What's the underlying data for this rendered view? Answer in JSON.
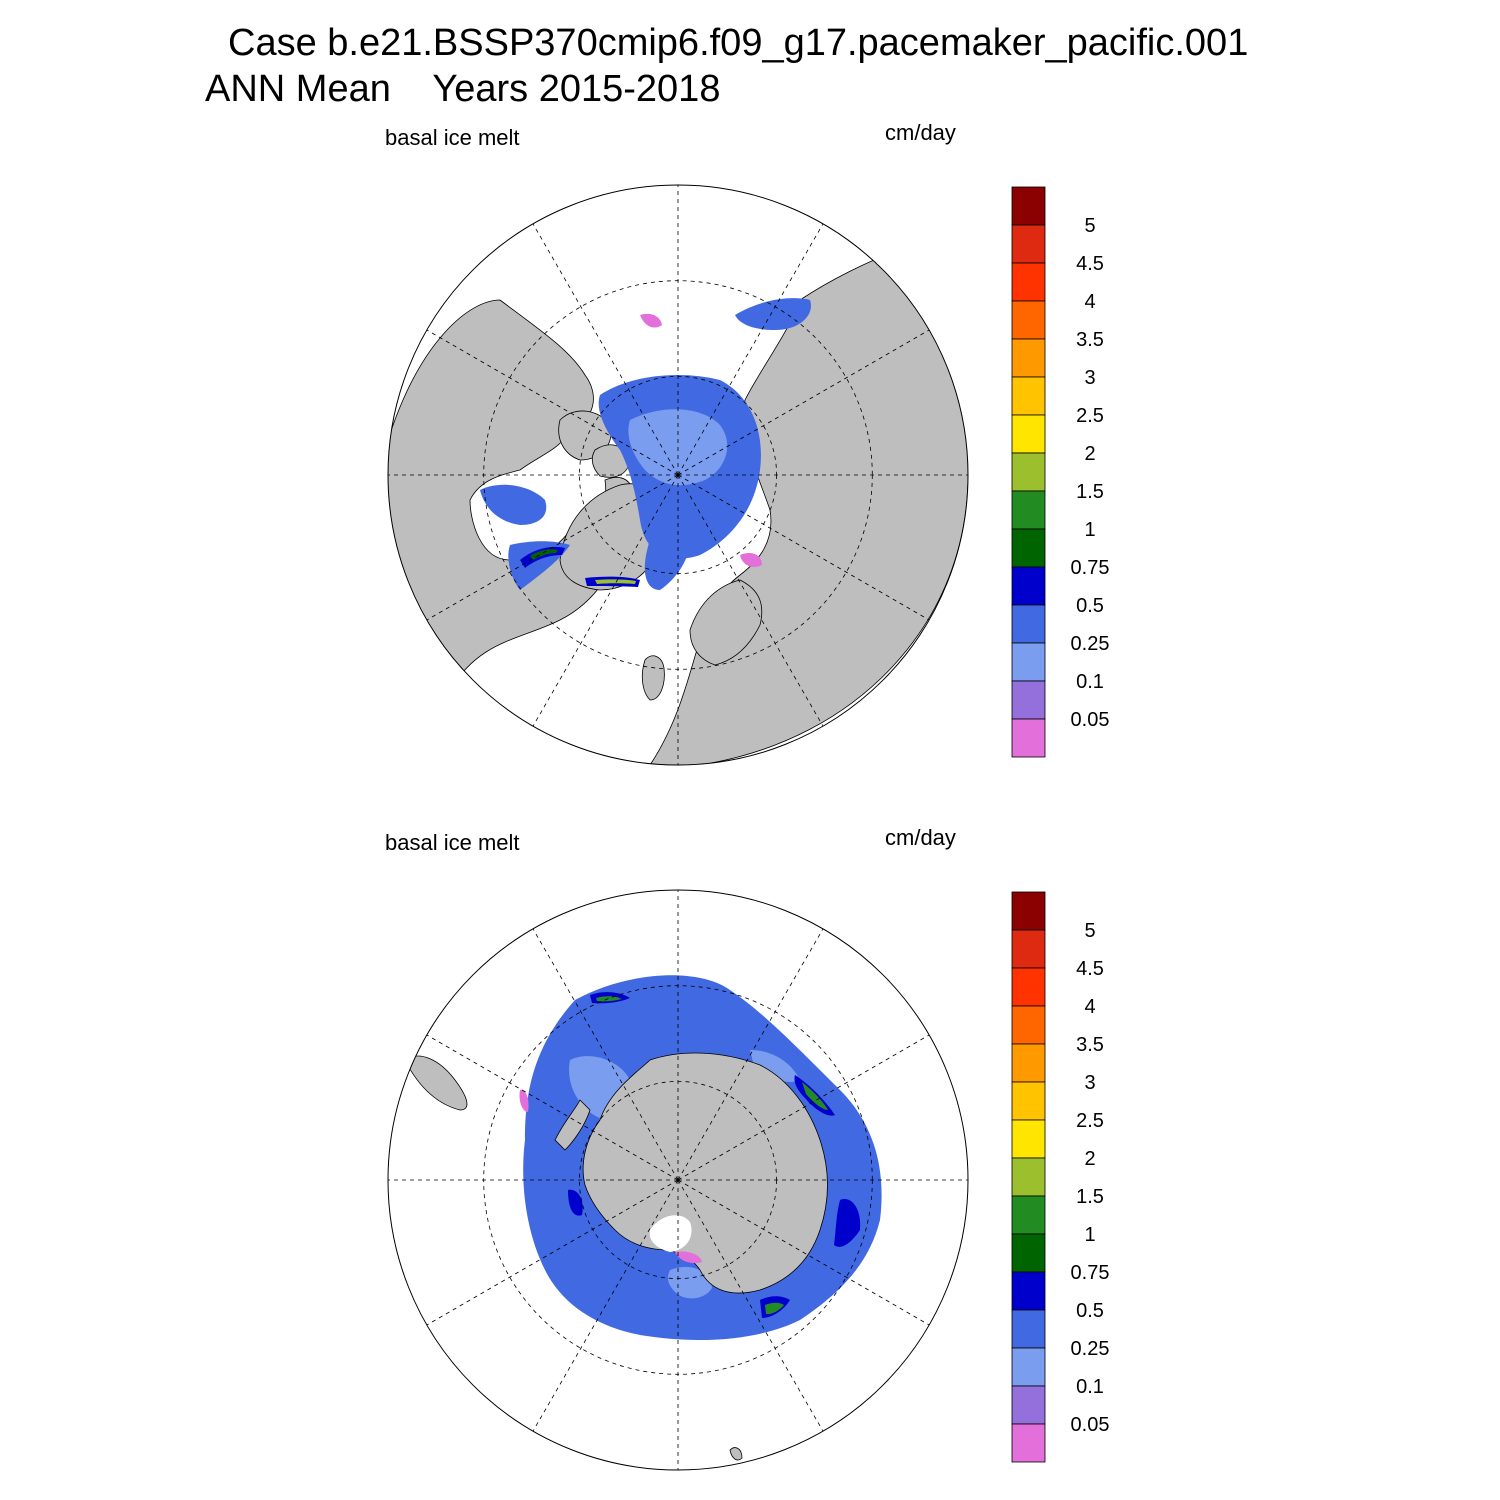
{
  "figure": {
    "title_line1": "Case b.e21.BSSP370cmip6.f09_g17.pacemaker_pacific.001",
    "title_line2": "ANN Mean    Years 2015-2018"
  },
  "panels": [
    {
      "id": "north",
      "hemisphere": "Northern",
      "left_label": "basal ice melt",
      "right_label": "cm/day"
    },
    {
      "id": "south",
      "hemisphere": "Southern",
      "left_label": "basal ice melt",
      "right_label": "cm/day"
    }
  ],
  "colorbar": {
    "labels": [
      "5",
      "4.5",
      "4",
      "3.5",
      "3",
      "2.5",
      "2",
      "1.5",
      "1",
      "0.75",
      "0.5",
      "0.25",
      "0.1",
      "0.05"
    ],
    "colors": [
      "#8b0000",
      "#dd2a11",
      "#ff3300",
      "#ff6600",
      "#ff9900",
      "#ffc300",
      "#ffe500",
      "#9cbf2e",
      "#228b22",
      "#006400",
      "#0000cd",
      "#4169e1",
      "#7b9df0",
      "#9370db",
      "#e36fdb"
    ]
  },
  "map_colors": {
    "land": "#bebebe",
    "ocean": "#ffffff",
    "grid": "#000000"
  }
}
